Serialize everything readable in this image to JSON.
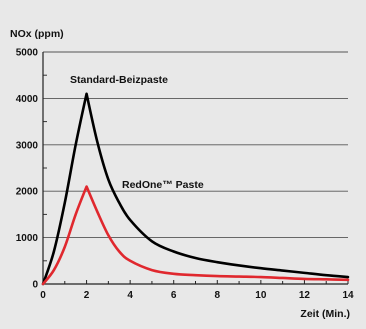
{
  "chart_data": {
    "type": "line",
    "title": "",
    "ylabel": "NOx (ppm)",
    "xlabel": "Zeit (Min.)",
    "xlim": [
      0,
      14
    ],
    "ylim": [
      0,
      5000
    ],
    "x_ticks": [
      "0",
      "2",
      "4",
      "6",
      "8",
      "10",
      "12",
      "14"
    ],
    "y_ticks": [
      "0",
      "1000",
      "2000",
      "3000",
      "4000",
      "5000"
    ],
    "grid": "horizontal",
    "legend": "none",
    "series": [
      {
        "name": "Standard-Beizpaste",
        "color": "#000000",
        "x": [
          0,
          0.5,
          1,
          1.5,
          2,
          2.5,
          3,
          3.5,
          4,
          5,
          6,
          7,
          8,
          9,
          10,
          11,
          12,
          13,
          14
        ],
        "y": [
          0,
          700,
          1750,
          3000,
          4100,
          3050,
          2250,
          1750,
          1380,
          920,
          700,
          560,
          470,
          400,
          340,
          290,
          240,
          190,
          150
        ]
      },
      {
        "name": "RedOne™ Paste",
        "color": "#e0282e",
        "x": [
          0,
          0.5,
          1,
          1.5,
          2,
          2.5,
          3,
          3.5,
          4,
          5,
          6,
          7,
          8,
          9,
          10,
          11,
          12,
          13,
          14
        ],
        "y": [
          0,
          300,
          800,
          1500,
          2100,
          1550,
          1050,
          700,
          500,
          300,
          220,
          190,
          170,
          160,
          150,
          130,
          110,
          100,
          90
        ]
      }
    ]
  }
}
